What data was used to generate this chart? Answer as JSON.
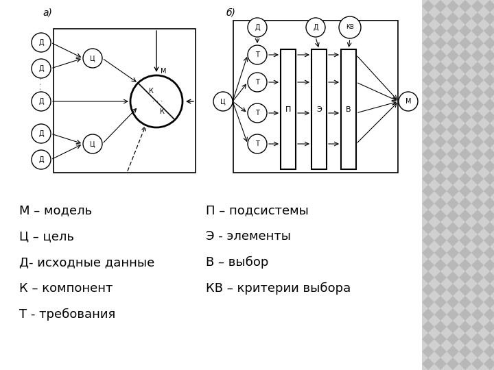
{
  "bg_color": "#ffffff",
  "diagram_color": "#000000",
  "label_a": "а)",
  "label_b": "б)",
  "left_legend": [
    "М – модель",
    "Ц – цель",
    "Д- исходные данные",
    "К – компонент",
    "Т - требования"
  ],
  "right_legend": [
    "П – подсистемы",
    "Э - элементы",
    "В – выбор",
    "КВ – критерии выбора"
  ],
  "font_size_legend": 13,
  "font_size_label": 10,
  "font_size_node": 7
}
